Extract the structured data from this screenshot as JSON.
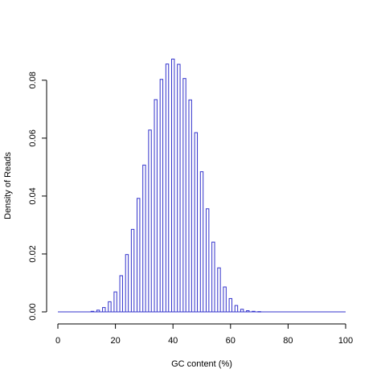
{
  "chart_data": {
    "type": "histogram",
    "title": "",
    "xlabel": "GC content (%)",
    "ylabel": "Density of Reads",
    "xlim": [
      0,
      100
    ],
    "ylim": [
      0,
      0.088
    ],
    "x_ticks": [
      0,
      20,
      40,
      60,
      80,
      100
    ],
    "y_ticks": [
      0.0,
      0.02,
      0.04,
      0.06,
      0.08
    ],
    "x_tick_labels": [
      "0",
      "20",
      "40",
      "60",
      "80",
      "100"
    ],
    "y_tick_labels": [
      "0.00",
      "0.02",
      "0.04",
      "0.06",
      "0.08"
    ],
    "grid": false,
    "legend": "none",
    "bar_color": "#3333cc",
    "series": [
      {
        "x": [
          2,
          4,
          6,
          8,
          10,
          12,
          14,
          16,
          18,
          20,
          22,
          24,
          26,
          28,
          30,
          32,
          34,
          36,
          38,
          40,
          42,
          44,
          46,
          48,
          50,
          52,
          54,
          56,
          58,
          60,
          62,
          64,
          66,
          68,
          70,
          72,
          74,
          76,
          78,
          80,
          82,
          84,
          86,
          88,
          90,
          92,
          94,
          96,
          98
        ],
        "values": [
          0.0,
          0.0,
          0.0,
          0.0,
          0.0,
          0.0002,
          0.0006,
          0.0015,
          0.0035,
          0.0069,
          0.0125,
          0.0198,
          0.0285,
          0.0392,
          0.0507,
          0.0628,
          0.0733,
          0.0803,
          0.0856,
          0.0873,
          0.0855,
          0.0806,
          0.0732,
          0.0619,
          0.0484,
          0.0356,
          0.0241,
          0.0152,
          0.0086,
          0.0046,
          0.0022,
          0.0009,
          0.0004,
          0.0002,
          0.0001,
          0.0,
          0.0,
          0.0,
          0.0,
          0.0,
          0.0,
          0.0,
          0.0,
          0.0,
          0.0,
          0.0,
          0.0,
          0.0,
          0.0
        ]
      }
    ]
  }
}
